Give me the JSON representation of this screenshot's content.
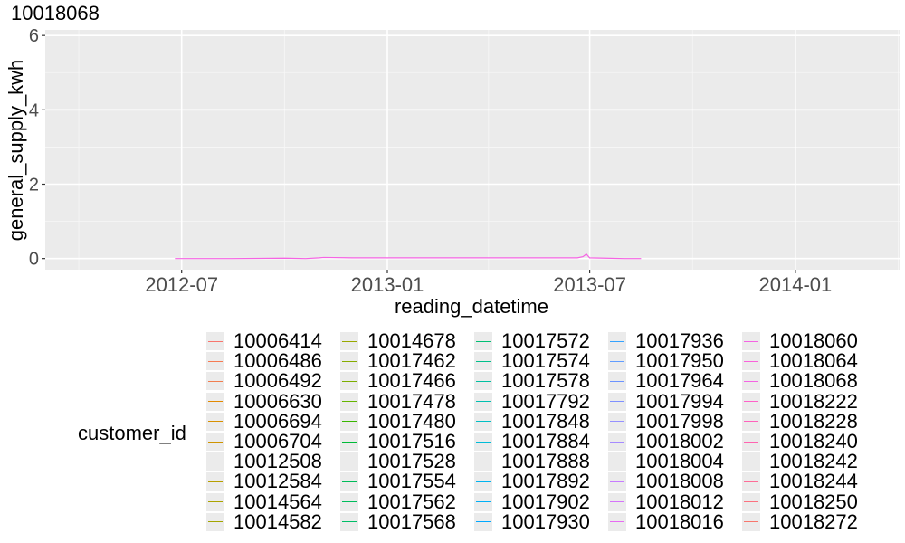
{
  "chart_data": {
    "type": "line",
    "title": "10018068",
    "xlabel": "reading_datetime",
    "ylabel": "general_supply_kwh",
    "xlim": [
      "2012-03-01",
      "2014-04-05"
    ],
    "ylim": [
      -0.3,
      6.15
    ],
    "x_ticks": [
      "2012-07-01",
      "2013-01-01",
      "2013-07-01",
      "2014-01-01"
    ],
    "x_tick_labels": [
      "2012-07",
      "2013-01",
      "2013-07",
      "2014-01"
    ],
    "y_ticks": [
      0,
      2,
      4,
      6
    ],
    "y_tick_labels": [
      "0",
      "2",
      "4",
      "6"
    ],
    "grid": true,
    "legend_placement": "bottom",
    "legend_title": "customer_id",
    "series": [
      {
        "name": "10018068",
        "color": "#f564e3",
        "x": [
          "2012-06-25",
          "2012-08-15",
          "2012-10-01",
          "2012-10-20",
          "2012-11-01",
          "2012-11-05",
          "2012-12-01",
          "2013-01-01",
          "2013-02-01",
          "2013-03-01",
          "2013-04-01",
          "2013-05-01",
          "2013-06-01",
          "2013-06-20",
          "2013-06-25",
          "2013-06-28",
          "2013-07-01",
          "2013-07-15",
          "2013-08-01",
          "2013-08-16"
        ],
        "values": [
          0.0,
          0.0,
          0.01,
          0.0,
          0.02,
          0.03,
          0.02,
          0.02,
          0.02,
          0.02,
          0.02,
          0.02,
          0.02,
          0.02,
          0.05,
          0.12,
          0.02,
          0.01,
          0.0,
          0.0
        ]
      }
    ]
  },
  "legend_entries": [
    {
      "label": "10006414",
      "color": "#f8766d"
    },
    {
      "label": "10006486",
      "color": "#f67b53"
    },
    {
      "label": "10006492",
      "color": "#f17e4f"
    },
    {
      "label": "10006630",
      "color": "#e38900"
    },
    {
      "label": "10006694",
      "color": "#d89000"
    },
    {
      "label": "10006704",
      "color": "#cf9400"
    },
    {
      "label": "10012508",
      "color": "#c49a00"
    },
    {
      "label": "10012584",
      "color": "#b79f00"
    },
    {
      "label": "10014564",
      "color": "#aba300"
    },
    {
      "label": "10014582",
      "color": "#a3a500"
    },
    {
      "label": "10014678",
      "color": "#98a900"
    },
    {
      "label": "10017462",
      "color": "#86ac00"
    },
    {
      "label": "10017466",
      "color": "#7cae00"
    },
    {
      "label": "10017478",
      "color": "#66b500"
    },
    {
      "label": "10017480",
      "color": "#39b600"
    },
    {
      "label": "10017516",
      "color": "#00ba38"
    },
    {
      "label": "10017528",
      "color": "#00bb4e"
    },
    {
      "label": "10017554",
      "color": "#00bc59"
    },
    {
      "label": "10017562",
      "color": "#00bd5c"
    },
    {
      "label": "10017568",
      "color": "#00be67"
    },
    {
      "label": "10017572",
      "color": "#00bf74"
    },
    {
      "label": "10017574",
      "color": "#00c08b"
    },
    {
      "label": "10017578",
      "color": "#00c0a1"
    },
    {
      "label": "10017792",
      "color": "#00c0b0"
    },
    {
      "label": "10017848",
      "color": "#00bfc4"
    },
    {
      "label": "10017884",
      "color": "#00bcd8"
    },
    {
      "label": "10017888",
      "color": "#00b8e3"
    },
    {
      "label": "10017892",
      "color": "#00b4ef"
    },
    {
      "label": "10017902",
      "color": "#00b0f6"
    },
    {
      "label": "10017930",
      "color": "#00a9ff"
    },
    {
      "label": "10017936",
      "color": "#35a2ff"
    },
    {
      "label": "10017950",
      "color": "#619cff"
    },
    {
      "label": "10017964",
      "color": "#6c93ff"
    },
    {
      "label": "10017994",
      "color": "#7e90ff"
    },
    {
      "label": "10017998",
      "color": "#9590ff"
    },
    {
      "label": "10018002",
      "color": "#a58aff"
    },
    {
      "label": "10018004",
      "color": "#b983ff"
    },
    {
      "label": "10018008",
      "color": "#c77cff"
    },
    {
      "label": "10018012",
      "color": "#d574fa"
    },
    {
      "label": "10018016",
      "color": "#e76bf3"
    },
    {
      "label": "10018060",
      "color": "#f564e3"
    },
    {
      "label": "10018064",
      "color": "#fa62db"
    },
    {
      "label": "10018068",
      "color": "#f564e3"
    },
    {
      "label": "10018222",
      "color": "#ff61c9"
    },
    {
      "label": "10018228",
      "color": "#ff62bc"
    },
    {
      "label": "10018240",
      "color": "#ff64b0"
    },
    {
      "label": "10018242",
      "color": "#ff67a4"
    },
    {
      "label": "10018244",
      "color": "#fe6d97"
    },
    {
      "label": "10018250",
      "color": "#fc717f"
    },
    {
      "label": "10018272",
      "color": "#f8766d"
    }
  ]
}
